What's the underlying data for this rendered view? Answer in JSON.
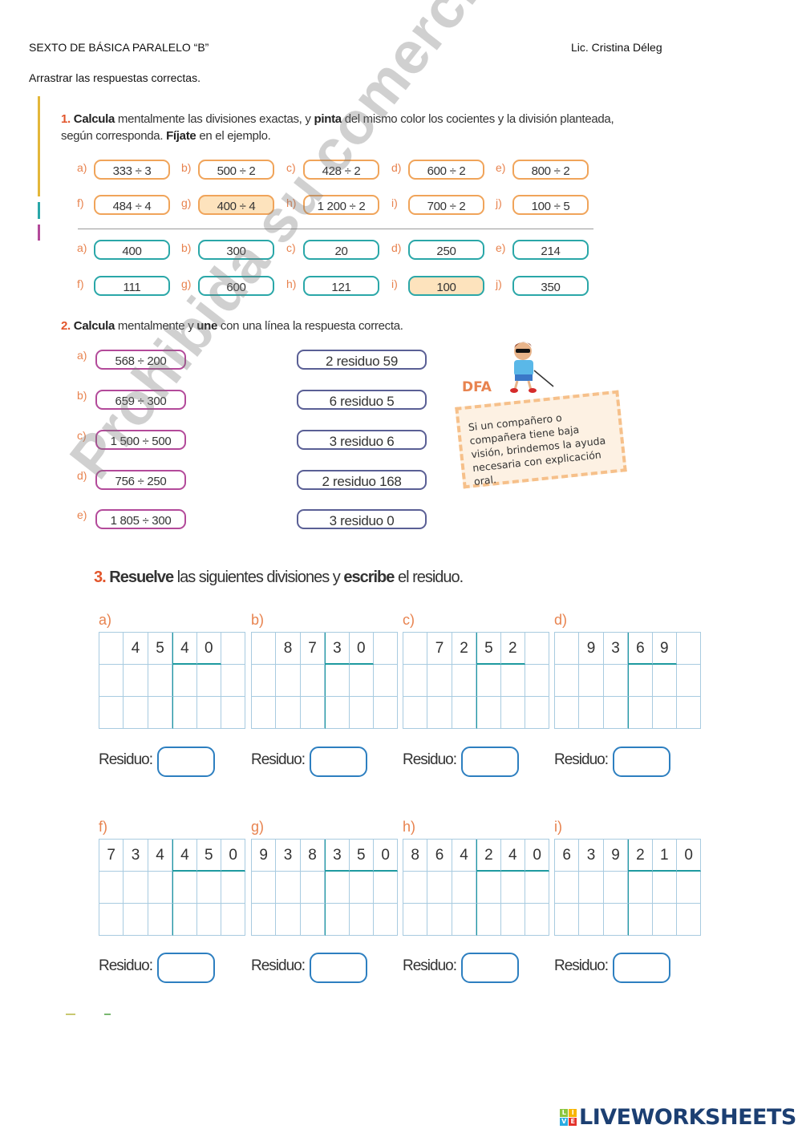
{
  "header": {
    "left": "SEXTO DE BÁSICA PARALELO  “B”",
    "right": "Lic. Cristina Déleg",
    "instruction": "Arrastrar las respuestas correctas."
  },
  "ex1": {
    "number": "1.",
    "text_parts": [
      "Calcula",
      " mentalmente las divisiones exactas, y ",
      "pinta",
      " del mismo color los cocientes y la división planteada, según corresponda. ",
      "Fíjate",
      " en el ejemplo."
    ],
    "divisions": [
      {
        "label": "a)",
        "value": "333 ÷ 3"
      },
      {
        "label": "b)",
        "value": "500 ÷ 2"
      },
      {
        "label": "c)",
        "value": "428 ÷ 2"
      },
      {
        "label": "d)",
        "value": "600 ÷ 2"
      },
      {
        "label": "e)",
        "value": "800 ÷ 2"
      },
      {
        "label": "f)",
        "value": "484 ÷ 4"
      },
      {
        "label": "g)",
        "value": "400 ÷ 4",
        "highlighted": true
      },
      {
        "label": "h)",
        "value": "1 200 ÷ 2"
      },
      {
        "label": "i)",
        "value": "700 ÷ 2"
      },
      {
        "label": "j)",
        "value": "100 ÷ 5"
      }
    ],
    "quotients": [
      {
        "label": "a)",
        "value": "400"
      },
      {
        "label": "b)",
        "value": "300"
      },
      {
        "label": "c)",
        "value": "20"
      },
      {
        "label": "d)",
        "value": "250"
      },
      {
        "label": "e)",
        "value": "214"
      },
      {
        "label": "f)",
        "value": "111"
      },
      {
        "label": "g)",
        "value": "600"
      },
      {
        "label": "h)",
        "value": "121"
      },
      {
        "label": "i)",
        "value": "100",
        "highlighted": true
      },
      {
        "label": "j)",
        "value": "350"
      }
    ],
    "highlight_color": "#fde3bd"
  },
  "ex2": {
    "number": "2.",
    "text_parts": [
      "Calcula",
      " mentalmente y ",
      "une",
      " con una línea la respuesta correcta."
    ],
    "left": [
      {
        "label": "a)",
        "value": "568 ÷ 200"
      },
      {
        "label": "b)",
        "value": "659 ÷ 300"
      },
      {
        "label": "c)",
        "value": "1 500 ÷ 500"
      },
      {
        "label": "d)",
        "value": "756 ÷ 250"
      },
      {
        "label": "e)",
        "value": "1 805 ÷ 300"
      }
    ],
    "right": [
      "2 residuo 59",
      "6 residuo 5",
      "3 residuo 6",
      "2 residuo 168",
      "3 residuo 0"
    ],
    "dfa_title": "DFA",
    "dfa_text": "Si un compañero o compañera tiene baja visión, brindemos la ayuda necesaria con explicación oral."
  },
  "ex3": {
    "number": "3.",
    "text_parts": [
      "Resuelve",
      " las siguientes divisiones y ",
      "escribe",
      " el residuo."
    ],
    "residuo_label": "Residuo:",
    "problems": [
      {
        "label": "a)",
        "digits": [
          "",
          "4",
          "5",
          "4",
          "0",
          ""
        ]
      },
      {
        "label": "b)",
        "digits": [
          "",
          "8",
          "7",
          "3",
          "0",
          ""
        ]
      },
      {
        "label": "c)",
        "digits": [
          "",
          "7",
          "2",
          "5",
          "2",
          ""
        ]
      },
      {
        "label": "d)",
        "digits": [
          "",
          "9",
          "3",
          "6",
          "9",
          ""
        ]
      },
      {
        "label": "f)",
        "digits": [
          "7",
          "3",
          "4",
          "4",
          "5",
          "0"
        ]
      },
      {
        "label": "g)",
        "digits": [
          "9",
          "3",
          "8",
          "3",
          "5",
          "0"
        ]
      },
      {
        "label": "h)",
        "digits": [
          "8",
          "6",
          "4",
          "2",
          "4",
          "0"
        ]
      },
      {
        "label": "i)",
        "digits": [
          "6",
          "3",
          "9",
          "2",
          "1",
          "0"
        ]
      }
    ]
  },
  "watermark": "Prohibida su comercialización",
  "footer": {
    "logo": "LIVEWORKSHEETS",
    "logo_badge": [
      "L",
      "I",
      "V",
      "E"
    ]
  },
  "colors": {
    "orange": "#f0a45a",
    "teal": "#2aa7a8",
    "magenta": "#b34a9a",
    "navy": "#5a5f95",
    "grid": "#a8cbe0",
    "answer_box": "#2d7fc0"
  }
}
